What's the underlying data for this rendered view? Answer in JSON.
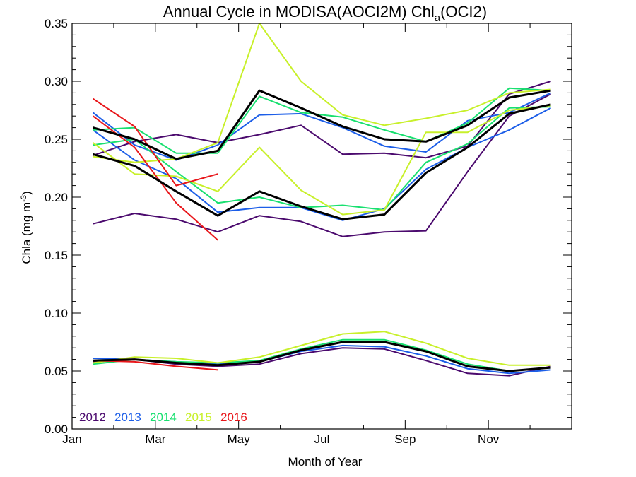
{
  "chart_data": {
    "type": "line",
    "title": "Annual Cycle in MODISA(AOCI2M) Chl",
    "title_sub": "a",
    "title_suffix": "(OCI2)",
    "xlabel": "Month of Year",
    "ylabel_main": "Chla (mg m",
    "ylabel_sup": "-3",
    "ylabel_close": ")",
    "xlim": [
      0,
      12
    ],
    "ylim": [
      0,
      0.35
    ],
    "x_ticks": [
      {
        "value": 0,
        "label": "Jan"
      },
      {
        "value": 2,
        "label": "Mar"
      },
      {
        "value": 4,
        "label": "May"
      },
      {
        "value": 6,
        "label": "Jul"
      },
      {
        "value": 8,
        "label": "Sep"
      },
      {
        "value": 10,
        "label": "Nov"
      }
    ],
    "y_ticks": [
      {
        "value": 0.0,
        "label": "0.00"
      },
      {
        "value": 0.05,
        "label": "0.05"
      },
      {
        "value": 0.1,
        "label": "0.10"
      },
      {
        "value": 0.15,
        "label": "0.15"
      },
      {
        "value": 0.2,
        "label": "0.20"
      },
      {
        "value": 0.25,
        "label": "0.25"
      },
      {
        "value": 0.3,
        "label": "0.30"
      },
      {
        "value": 0.35,
        "label": "0.35"
      }
    ],
    "x": [
      0.5,
      1.5,
      2.5,
      3.5,
      4.5,
      5.5,
      6.5,
      7.5,
      8.5,
      9.5,
      10.5,
      11.5
    ],
    "legend": [
      {
        "label": "2012",
        "color": "#4b0a6e"
      },
      {
        "label": "2013",
        "color": "#1c5ee8"
      },
      {
        "label": "2014",
        "color": "#19e070"
      },
      {
        "label": "2015",
        "color": "#c8f02a"
      },
      {
        "label": "2016",
        "color": "#e8161a"
      }
    ],
    "legend_position": "bottom-left",
    "series": [
      {
        "group": "2012",
        "color": "#4b0a6e",
        "stat": "upper",
        "values": [
          0.236,
          0.248,
          0.254,
          0.247,
          0.254,
          0.262,
          0.237,
          0.238,
          0.234,
          0.244,
          0.289,
          0.3
        ]
      },
      {
        "group": "2012",
        "color": "#4b0a6e",
        "stat": "middle",
        "values": [
          0.177,
          0.186,
          0.181,
          0.17,
          0.184,
          0.179,
          0.166,
          0.17,
          0.171,
          0.222,
          0.27,
          0.289
        ]
      },
      {
        "group": "2012",
        "color": "#4b0a6e",
        "stat": "lower",
        "values": [
          0.058,
          0.06,
          0.056,
          0.054,
          0.056,
          0.065,
          0.07,
          0.069,
          0.059,
          0.048,
          0.046,
          0.054
        ]
      },
      {
        "group": "2013",
        "color": "#1c5ee8",
        "stat": "upper",
        "values": [
          0.273,
          0.245,
          0.232,
          0.245,
          0.271,
          0.272,
          0.26,
          0.244,
          0.239,
          0.266,
          0.273,
          0.29
        ]
      },
      {
        "group": "2013",
        "color": "#1c5ee8",
        "stat": "middle",
        "values": [
          0.258,
          0.232,
          0.216,
          0.187,
          0.191,
          0.191,
          0.18,
          0.19,
          0.224,
          0.243,
          0.258,
          0.277
        ]
      },
      {
        "group": "2013",
        "color": "#1c5ee8",
        "stat": "lower",
        "values": [
          0.061,
          0.06,
          0.058,
          0.056,
          0.058,
          0.067,
          0.072,
          0.071,
          0.063,
          0.052,
          0.048,
          0.051
        ]
      },
      {
        "group": "2014",
        "color": "#19e070",
        "stat": "upper",
        "values": [
          0.258,
          0.26,
          0.238,
          0.238,
          0.287,
          0.273,
          0.269,
          0.258,
          0.248,
          0.264,
          0.294,
          0.292
        ]
      },
      {
        "group": "2014",
        "color": "#19e070",
        "stat": "middle",
        "values": [
          0.245,
          0.25,
          0.222,
          0.195,
          0.2,
          0.191,
          0.193,
          0.189,
          0.23,
          0.246,
          0.277,
          0.278
        ]
      },
      {
        "group": "2014",
        "color": "#19e070",
        "stat": "lower",
        "values": [
          0.056,
          0.06,
          0.058,
          0.057,
          0.059,
          0.069,
          0.077,
          0.077,
          0.068,
          0.056,
          0.05,
          0.053
        ]
      },
      {
        "group": "2015",
        "color": "#c8f02a",
        "stat": "upper",
        "values": [
          0.235,
          0.23,
          0.233,
          0.247,
          0.35,
          0.3,
          0.271,
          0.262,
          0.268,
          0.275,
          0.29,
          0.293
        ]
      },
      {
        "group": "2015",
        "color": "#c8f02a",
        "stat": "middle",
        "values": [
          0.247,
          0.22,
          0.218,
          0.205,
          0.243,
          0.206,
          0.185,
          0.189,
          0.256,
          0.256,
          0.275,
          0.279
        ]
      },
      {
        "group": "2015",
        "color": "#c8f02a",
        "stat": "lower",
        "values": [
          0.057,
          0.062,
          0.061,
          0.057,
          0.062,
          0.072,
          0.082,
          0.084,
          0.074,
          0.061,
          0.055,
          0.055
        ]
      },
      {
        "group": "2016",
        "color": "#e8161a",
        "stat": "upper",
        "values": [
          0.285,
          0.261,
          0.21,
          0.22,
          null,
          null,
          null,
          null,
          null,
          null,
          null,
          null
        ]
      },
      {
        "group": "2016",
        "color": "#e8161a",
        "stat": "middle",
        "values": [
          0.27,
          0.243,
          0.195,
          0.163,
          null,
          null,
          null,
          null,
          null,
          null,
          null,
          null
        ]
      },
      {
        "group": "2016",
        "color": "#e8161a",
        "stat": "lower",
        "values": [
          0.059,
          0.058,
          0.054,
          0.051,
          null,
          null,
          null,
          null,
          null,
          null,
          null,
          null
        ]
      },
      {
        "group": "mean",
        "color": "#000000",
        "stat": "upper",
        "values": [
          0.26,
          0.25,
          0.233,
          0.24,
          0.292,
          0.277,
          0.261,
          0.25,
          0.248,
          0.262,
          0.286,
          0.292
        ]
      },
      {
        "group": "mean",
        "color": "#000000",
        "stat": "middle",
        "values": [
          0.237,
          0.227,
          0.205,
          0.184,
          0.205,
          0.192,
          0.181,
          0.185,
          0.221,
          0.243,
          0.272,
          0.28
        ]
      },
      {
        "group": "mean",
        "color": "#000000",
        "stat": "lower",
        "values": [
          0.059,
          0.06,
          0.057,
          0.055,
          0.058,
          0.068,
          0.075,
          0.075,
          0.067,
          0.054,
          0.05,
          0.053
        ]
      }
    ]
  }
}
